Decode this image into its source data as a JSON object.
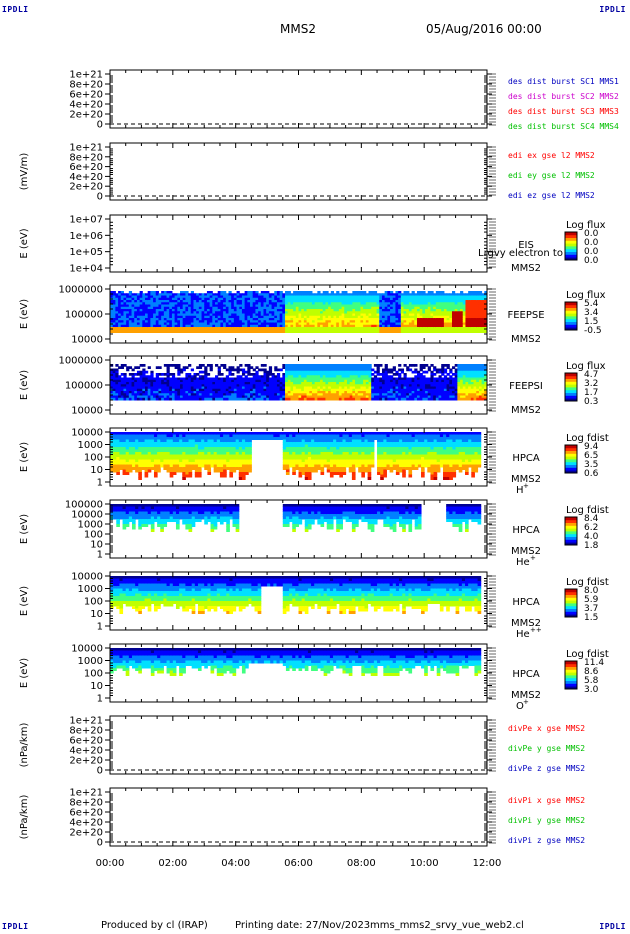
{
  "corner_tag": "IPDLI",
  "header": {
    "spacecraft": "MMS2",
    "date": "05/Aug/2016 00:00"
  },
  "footer": {
    "produced_by": "Produced by cl (IRAP)",
    "printing_date": "Printing date: 27/Nov/2023",
    "script": "mms_mms2_srvy_vue_web2.cl"
  },
  "colors": {
    "red": "#ff0000",
    "magenta": "#cc00cc",
    "green": "#00c000",
    "blue": "#0000c0",
    "colormap": [
      "#000090",
      "#0000ff",
      "#0080ff",
      "#00e0ff",
      "#40ff80",
      "#c0ff00",
      "#ffff00",
      "#ffa000",
      "#ff3000",
      "#c00000"
    ]
  },
  "chart_data": {
    "type": "heatmap",
    "time_axis": {
      "ticks": [
        "00:00",
        "02:00",
        "04:00",
        "06:00",
        "08:00",
        "10:00",
        "12:00"
      ],
      "range_hours": [
        0,
        12
      ]
    },
    "panels": [
      {
        "id": "dist",
        "type": "line",
        "ylabel": "",
        "yticks": [
          "1e+21",
          "8e+20",
          "6e+20",
          "4e+20",
          "2e+20",
          "0"
        ],
        "legend": [
          {
            "text": "des dist burst SC1 MMS1",
            "color": "blue"
          },
          {
            "text": "des dist burst SC2 MMS2",
            "color": "magenta"
          },
          {
            "text": "des dist burst SC3 MMS3",
            "color": "red"
          },
          {
            "text": "des dist burst SC4 MMS4",
            "color": "green"
          }
        ]
      },
      {
        "id": "edi",
        "type": "line",
        "ylabel": "(mV/m)",
        "yticks": [
          "1e+21",
          "8e+20",
          "6e+20",
          "4e+20",
          "2e+20",
          "0"
        ],
        "legend": [
          {
            "text": "edi ex gse l2 MMS2",
            "color": "red"
          },
          {
            "text": "edi ey gse l2 MMS2",
            "color": "green"
          },
          {
            "text": "edi ez gse l2 MMS2",
            "color": "blue"
          }
        ]
      },
      {
        "id": "eis",
        "type": "heatmap",
        "ylabel": "E (eV)",
        "yticks": [
          "1e+07",
          "1e+06",
          "1e+05",
          "1e+04"
        ],
        "label_lines": [
          "EIS",
          "MMS2"
        ],
        "overflow_text": "Lrgvy electron to",
        "colorbar": {
          "title": "Log flux",
          "ticks": [
            "0.0",
            "0.0",
            "0.0",
            "0.0"
          ]
        }
      },
      {
        "id": "feepse",
        "type": "heatmap",
        "ylabel": "E (eV)",
        "yticks": [
          "1000000",
          "100000",
          "10000"
        ],
        "label_lines": [
          "FEEPSE",
          "MMS2"
        ],
        "colorbar": {
          "title": "Log flux",
          "ticks": [
            "5.4",
            "3.4",
            "1.5",
            "-0.5"
          ]
        }
      },
      {
        "id": "feepsi",
        "type": "heatmap",
        "ylabel": "E (eV)",
        "yticks": [
          "1000000",
          "100000",
          "10000"
        ],
        "label_lines": [
          "FEEPSI",
          "MMS2"
        ],
        "colorbar": {
          "title": "Log flux",
          "ticks": [
            "4.7",
            "3.2",
            "1.7",
            "0.3"
          ]
        }
      },
      {
        "id": "hpca_h",
        "type": "heatmap",
        "ylabel": "E (eV)",
        "yticks": [
          "10000",
          "1000",
          "100",
          "10",
          "1"
        ],
        "label_lines": [
          "HPCA",
          "MMS2"
        ],
        "species": "H",
        "charge": "+",
        "colorbar": {
          "title": "Log fdist",
          "ticks": [
            "9.4",
            "6.5",
            "3.5",
            "0.6"
          ]
        }
      },
      {
        "id": "hpca_he",
        "type": "heatmap",
        "ylabel": "E (eV)",
        "yticks": [
          "100000",
          "10000",
          "1000",
          "100",
          "10",
          "1"
        ],
        "label_lines": [
          "HPCA",
          "MMS2"
        ],
        "species": "He",
        "charge": "+",
        "colorbar": {
          "title": "Log fdist",
          "ticks": [
            "8.4",
            "6.2",
            "4.0",
            "1.8"
          ]
        }
      },
      {
        "id": "hpca_hepp",
        "type": "heatmap",
        "ylabel": "E (eV)",
        "yticks": [
          "10000",
          "1000",
          "100",
          "10",
          "1"
        ],
        "label_lines": [
          "HPCA",
          "MMS2"
        ],
        "species": "He",
        "charge": "++",
        "colorbar": {
          "title": "Log fdist",
          "ticks": [
            "8.0",
            "5.9",
            "3.7",
            "1.5"
          ]
        }
      },
      {
        "id": "hpca_o",
        "type": "heatmap",
        "ylabel": "E (eV)",
        "yticks": [
          "10000",
          "1000",
          "100",
          "10",
          "1"
        ],
        "label_lines": [
          "HPCA",
          "MMS2"
        ],
        "species": "O",
        "charge": "+",
        "colorbar": {
          "title": "Log fdist",
          "ticks": [
            "11.4",
            "8.6",
            "5.8",
            "3.0"
          ]
        }
      },
      {
        "id": "divpe",
        "type": "line",
        "ylabel": "(nPa/km)",
        "yticks": [
          "1e+21",
          "8e+20",
          "6e+20",
          "4e+20",
          "2e+20",
          "0"
        ],
        "legend": [
          {
            "text": "divPe x gse MMS2",
            "color": "red"
          },
          {
            "text": "divPe y gse MMS2",
            "color": "green"
          },
          {
            "text": "divPe z gse MMS2",
            "color": "blue"
          }
        ]
      },
      {
        "id": "divpi",
        "type": "line",
        "ylabel": "(nPa/km)",
        "yticks": [
          "1e+21",
          "8e+20",
          "6e+20",
          "4e+20",
          "2e+20",
          "0"
        ],
        "legend": [
          {
            "text": "divPi x gse MMS2",
            "color": "red"
          },
          {
            "text": "divPi y gse MMS2",
            "color": "green"
          },
          {
            "text": "divPi z gse MMS2",
            "color": "blue"
          }
        ]
      }
    ]
  }
}
